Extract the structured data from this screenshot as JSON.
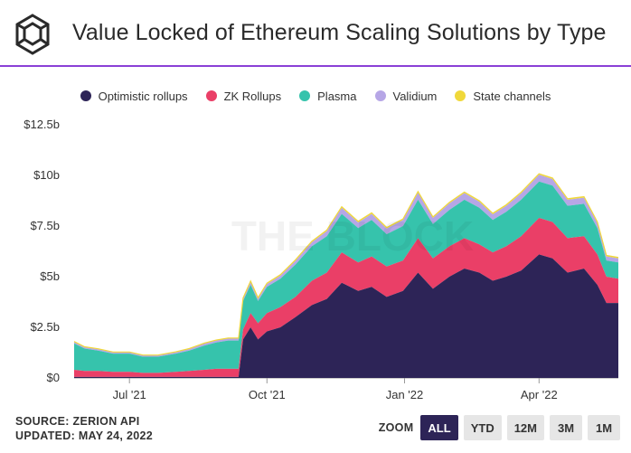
{
  "header": {
    "title": "Value Locked of Ethereum Scaling Solutions by Type",
    "logo_icon": "the-block-cube-icon"
  },
  "watermark": "THE BLOCK",
  "colors": {
    "optimistic": "#2d2457",
    "zk": "#ea3f67",
    "plasma": "#36c3ac",
    "validium": "#b6a6e6",
    "state_channels": "#f0d83a",
    "accent": "#8a3fd6"
  },
  "footer": {
    "source": "SOURCE: ZERION API",
    "updated": "UPDATED: MAY 24, 2022"
  },
  "zoom": {
    "label": "ZOOM",
    "buttons": [
      {
        "label": "ALL",
        "active": true
      },
      {
        "label": "YTD",
        "active": false
      },
      {
        "label": "12M",
        "active": false
      },
      {
        "label": "3M",
        "active": false
      },
      {
        "label": "1M",
        "active": false
      }
    ]
  },
  "chart_data": {
    "type": "area",
    "stacked": true,
    "grid": false,
    "legend_position": "top-center",
    "y_unit": "$ billions",
    "ylim": [
      0,
      12.5
    ],
    "y_ticks": [
      0,
      2.5,
      5,
      7.5,
      10,
      12.5
    ],
    "y_tick_labels": [
      "$0",
      "$2.5b",
      "$5b",
      "$7.5b",
      "$10b",
      "$12.5b"
    ],
    "xlim": [
      "2021-05-25",
      "2022-05-24"
    ],
    "x_ticks": [
      "2021-07-01",
      "2021-10-01",
      "2022-01-01",
      "2022-04-01"
    ],
    "x_tick_labels": [
      "Jul '21",
      "Oct '21",
      "Jan '22",
      "Apr '22"
    ],
    "x": [
      "2021-05-25",
      "2021-06-01",
      "2021-06-10",
      "2021-06-20",
      "2021-07-01",
      "2021-07-10",
      "2021-07-20",
      "2021-08-01",
      "2021-08-10",
      "2021-08-20",
      "2021-08-28",
      "2021-09-05",
      "2021-09-12",
      "2021-09-15",
      "2021-09-20",
      "2021-09-25",
      "2021-10-01",
      "2021-10-10",
      "2021-10-20",
      "2021-10-31",
      "2021-11-10",
      "2021-11-20",
      "2021-12-01",
      "2021-12-10",
      "2021-12-20",
      "2021-12-31",
      "2022-01-10",
      "2022-01-20",
      "2022-01-31",
      "2022-02-10",
      "2022-02-20",
      "2022-03-01",
      "2022-03-10",
      "2022-03-20",
      "2022-04-01",
      "2022-04-10",
      "2022-04-20",
      "2022-05-01",
      "2022-05-10",
      "2022-05-16",
      "2022-05-24"
    ],
    "series": [
      {
        "name": "Optimistic rollups",
        "values": [
          0.05,
          0.05,
          0.05,
          0.05,
          0.05,
          0.05,
          0.05,
          0.05,
          0.05,
          0.05,
          0.05,
          0.05,
          0.05,
          1.9,
          2.5,
          1.9,
          2.3,
          2.5,
          3.0,
          3.6,
          3.9,
          4.7,
          4.3,
          4.5,
          4.0,
          4.3,
          5.2,
          4.4,
          5.0,
          5.4,
          5.2,
          4.8,
          5.0,
          5.3,
          6.1,
          5.9,
          5.2,
          5.4,
          4.6,
          3.7,
          3.7
        ]
      },
      {
        "name": "ZK Rollups",
        "values": [
          0.35,
          0.3,
          0.3,
          0.25,
          0.25,
          0.2,
          0.2,
          0.25,
          0.3,
          0.35,
          0.4,
          0.4,
          0.4,
          0.5,
          0.7,
          0.8,
          0.9,
          1.0,
          1.0,
          1.2,
          1.3,
          1.5,
          1.4,
          1.5,
          1.5,
          1.5,
          1.7,
          1.5,
          1.5,
          1.5,
          1.4,
          1.4,
          1.5,
          1.7,
          1.8,
          1.8,
          1.7,
          1.6,
          1.5,
          1.3,
          1.2
        ]
      },
      {
        "name": "Plasma",
        "values": [
          1.3,
          1.1,
          1.0,
          0.9,
          0.9,
          0.8,
          0.8,
          0.9,
          1.0,
          1.2,
          1.3,
          1.4,
          1.4,
          1.4,
          1.4,
          1.1,
          1.3,
          1.4,
          1.6,
          1.7,
          1.8,
          1.9,
          1.7,
          1.8,
          1.6,
          1.7,
          1.9,
          1.7,
          1.8,
          1.9,
          1.8,
          1.6,
          1.7,
          1.8,
          1.8,
          1.8,
          1.6,
          1.6,
          1.3,
          0.8,
          0.8
        ]
      },
      {
        "name": "Validium",
        "values": [
          0.08,
          0.07,
          0.07,
          0.06,
          0.06,
          0.06,
          0.06,
          0.07,
          0.08,
          0.1,
          0.1,
          0.1,
          0.1,
          0.12,
          0.14,
          0.12,
          0.14,
          0.15,
          0.18,
          0.2,
          0.25,
          0.3,
          0.28,
          0.3,
          0.28,
          0.3,
          0.35,
          0.3,
          0.32,
          0.33,
          0.3,
          0.28,
          0.3,
          0.32,
          0.33,
          0.32,
          0.3,
          0.3,
          0.25,
          0.2,
          0.2
        ]
      },
      {
        "name": "State channels",
        "values": [
          0.02,
          0.02,
          0.02,
          0.02,
          0.02,
          0.02,
          0.02,
          0.02,
          0.02,
          0.02,
          0.02,
          0.02,
          0.02,
          0.03,
          0.04,
          0.04,
          0.04,
          0.05,
          0.05,
          0.05,
          0.05,
          0.05,
          0.05,
          0.05,
          0.05,
          0.05,
          0.05,
          0.05,
          0.05,
          0.05,
          0.05,
          0.05,
          0.05,
          0.05,
          0.05,
          0.05,
          0.05,
          0.05,
          0.05,
          0.05,
          0.05
        ]
      }
    ]
  }
}
